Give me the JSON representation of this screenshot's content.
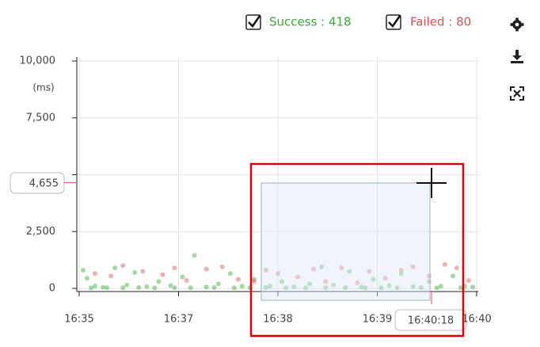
{
  "chart_data": {
    "type": "scatter",
    "y_unit": "(ms)",
    "xlim": [
      995,
      1000
    ],
    "xticks": [
      {
        "value": 995,
        "label": "16:35"
      },
      {
        "value": 996.25,
        "label": "16:37"
      },
      {
        "value": 997.5,
        "label": "16:38"
      },
      {
        "value": 998.75,
        "label": "16:39"
      },
      {
        "value": 1000,
        "label": "16:40"
      }
    ],
    "ylim": [
      0,
      10000
    ],
    "yticks": [
      {
        "value": 0,
        "label": "0"
      },
      {
        "value": 2500,
        "label": "2,500"
      },
      {
        "value": 5000,
        "label": null
      },
      {
        "value": 7500,
        "label": "7,500"
      },
      {
        "value": 10000,
        "label": "10,000"
      }
    ],
    "grid": true,
    "cursor": {
      "time_label": "16:40:18",
      "value": 4655,
      "value_label": "4,655"
    },
    "series": [
      {
        "name": "Success : 418",
        "color": "#3aa83a",
        "x": [
          995.05,
          995.1,
          995.2,
          995.3,
          995.45,
          995.6,
          995.7,
          995.85,
          996.0,
          996.15,
          996.3,
          996.45,
          996.6,
          996.75,
          996.9,
          997.05,
          997.2,
          997.4,
          997.55,
          997.7,
          997.9,
          998.05,
          998.2,
          998.4,
          998.55,
          998.7,
          998.9,
          999.05,
          999.2,
          999.4,
          999.55,
          999.7,
          999.85,
          999.95,
          995.15,
          995.35,
          995.55,
          995.75,
          995.95,
          996.2,
          996.4,
          996.7,
          996.95,
          997.15,
          997.35,
          997.6,
          997.85,
          998.1,
          998.35,
          998.6,
          998.8,
          999.0,
          999.3,
          999.5,
          999.8
        ],
        "y": [
          800,
          450,
          100,
          50,
          900,
          150,
          700,
          80,
          300,
          120,
          500,
          1450,
          60,
          200,
          650,
          90,
          400,
          100,
          300,
          70,
          200,
          950,
          150,
          750,
          60,
          400,
          120,
          650,
          80,
          300,
          100,
          550,
          90,
          60,
          20,
          30,
          25,
          40,
          20,
          30,
          25,
          35,
          20,
          30,
          40,
          25,
          20,
          30,
          35,
          20,
          25,
          30,
          40,
          20,
          30
        ]
      },
      {
        "name": "Failed : 80",
        "color": "#e05050",
        "x": [
          995.2,
          995.4,
          995.55,
          995.8,
          996.05,
          996.2,
          996.35,
          996.6,
          996.8,
          997.0,
          997.2,
          997.35,
          997.5,
          997.75,
          997.95,
          998.1,
          998.3,
          998.5,
          998.65,
          998.85,
          999.05,
          999.2,
          999.4,
          999.6,
          999.75,
          999.9
        ],
        "y": [
          650,
          550,
          1000,
          750,
          600,
          900,
          350,
          850,
          950,
          400,
          300,
          800,
          650,
          500,
          850,
          300,
          900,
          250,
          750,
          450,
          800,
          950,
          550,
          1050,
          900,
          350
        ]
      }
    ]
  }
}
